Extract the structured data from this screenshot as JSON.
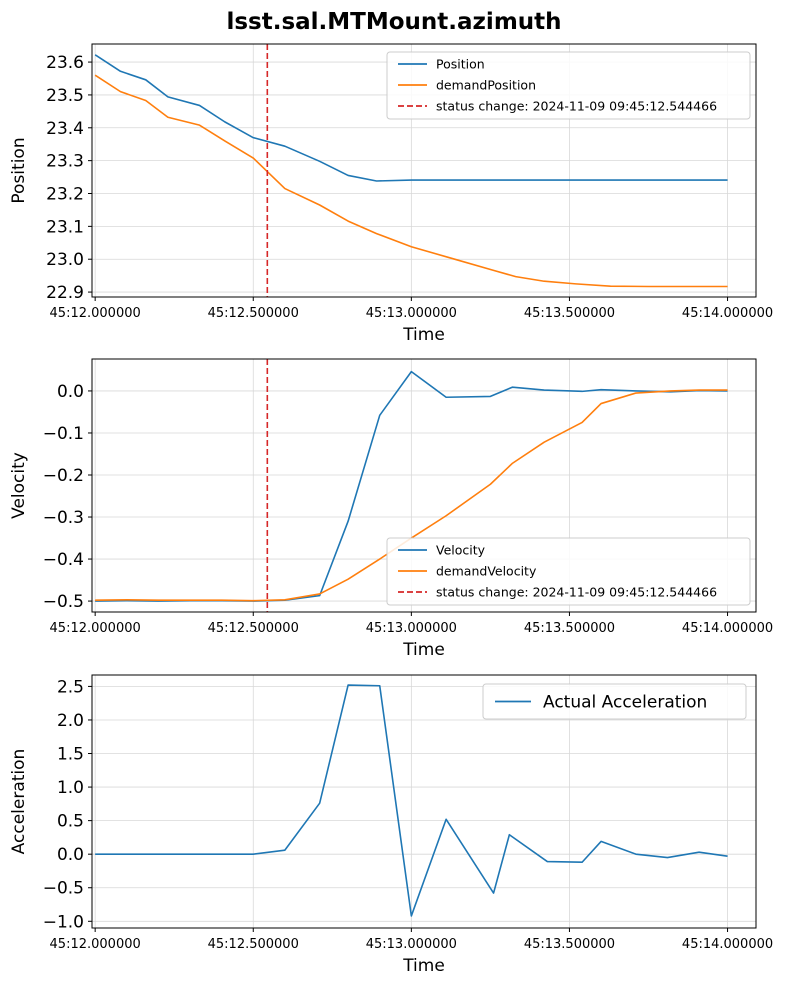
{
  "figure_title": "lsst.sal.MTMount.azimuth",
  "colors": {
    "blue": "#1f77b4",
    "orange": "#ff7f0e",
    "red": "#d62728"
  },
  "chart_data": [
    {
      "type": "line",
      "xlabel": "Time",
      "ylabel": "Position",
      "grid": true,
      "legend": "top-right",
      "xlim": [
        11.99,
        14.09
      ],
      "ylim": [
        22.885,
        23.655
      ],
      "xticks": [
        12.0,
        12.5,
        13.0,
        13.5,
        14.0
      ],
      "xtick_labels": [
        "45:12.000000",
        "45:12.500000",
        "45:13.000000",
        "45:13.500000",
        "45:14.000000"
      ],
      "yticks": [
        22.9,
        23.0,
        23.1,
        23.2,
        23.3,
        23.4,
        23.5,
        23.6
      ],
      "ytick_labels": [
        "22.9",
        "23.0",
        "23.1",
        "23.2",
        "23.3",
        "23.4",
        "23.5",
        "23.6"
      ],
      "series": [
        {
          "name": "Position",
          "color": "#1f77b4",
          "x": [
            12.0,
            12.08,
            12.16,
            12.23,
            12.33,
            12.41,
            12.5,
            12.6,
            12.71,
            12.8,
            12.89,
            13.0,
            13.25,
            13.5,
            13.75,
            14.0
          ],
          "y": [
            23.622,
            23.572,
            23.546,
            23.494,
            23.468,
            23.418,
            23.37,
            23.344,
            23.298,
            23.255,
            23.238,
            23.241,
            23.241,
            23.241,
            23.241,
            23.241
          ]
        },
        {
          "name": "demandPosition",
          "color": "#ff7f0e",
          "x": [
            12.0,
            12.08,
            12.16,
            12.23,
            12.33,
            12.41,
            12.5,
            12.6,
            12.71,
            12.8,
            12.89,
            13.0,
            13.13,
            13.26,
            13.33,
            13.42,
            13.52,
            13.63,
            13.75,
            13.88,
            14.0
          ],
          "y": [
            23.56,
            23.51,
            23.483,
            23.432,
            23.408,
            23.36,
            23.308,
            23.215,
            23.165,
            23.116,
            23.078,
            23.038,
            23.002,
            22.966,
            22.947,
            22.933,
            22.925,
            22.918,
            22.917,
            22.917,
            22.917
          ]
        }
      ],
      "vlines": [
        {
          "name": "status change: 2024-11-09 09:45:12.544466",
          "x": 12.544466,
          "color": "#d62728"
        }
      ]
    },
    {
      "type": "line",
      "xlabel": "Time",
      "ylabel": "Velocity",
      "grid": true,
      "legend": "lower-right",
      "xlim": [
        11.99,
        14.09
      ],
      "ylim": [
        -0.526,
        0.076
      ],
      "xticks": [
        12.0,
        12.5,
        13.0,
        13.5,
        14.0
      ],
      "xtick_labels": [
        "45:12.000000",
        "45:12.500000",
        "45:13.000000",
        "45:13.500000",
        "45:14.000000"
      ],
      "yticks": [
        -0.5,
        -0.4,
        -0.3,
        -0.2,
        -0.1,
        0.0
      ],
      "ytick_labels": [
        "−0.5",
        "−0.4",
        "−0.3",
        "−0.2",
        "−0.1",
        "0.0"
      ],
      "series": [
        {
          "name": "Velocity",
          "color": "#1f77b4",
          "x": [
            12.0,
            12.1,
            12.2,
            12.3,
            12.4,
            12.5,
            12.6,
            12.71,
            12.8,
            12.9,
            13.0,
            13.11,
            13.25,
            13.32,
            13.42,
            13.54,
            13.6,
            13.71,
            13.82,
            13.91,
            14.0
          ],
          "y": [
            -0.5,
            -0.499,
            -0.5,
            -0.499,
            -0.499,
            -0.5,
            -0.498,
            -0.487,
            -0.31,
            -0.058,
            0.046,
            -0.015,
            -0.013,
            0.009,
            0.002,
            -0.001,
            0.003,
            0.0,
            -0.002,
            0.001,
            0.0
          ]
        },
        {
          "name": "demandVelocity",
          "color": "#ff7f0e",
          "x": [
            12.0,
            12.1,
            12.2,
            12.3,
            12.4,
            12.5,
            12.6,
            12.71,
            12.8,
            12.9,
            13.0,
            13.11,
            13.25,
            13.32,
            13.42,
            13.54,
            13.6,
            13.71,
            13.82,
            13.91,
            14.0
          ],
          "y": [
            -0.498,
            -0.497,
            -0.498,
            -0.498,
            -0.498,
            -0.499,
            -0.497,
            -0.483,
            -0.448,
            -0.4,
            -0.35,
            -0.297,
            -0.222,
            -0.172,
            -0.122,
            -0.075,
            -0.03,
            -0.005,
            0.0,
            0.002,
            0.002
          ]
        }
      ],
      "vlines": [
        {
          "name": "status change: 2024-11-09 09:45:12.544466",
          "x": 12.544466,
          "color": "#d62728"
        }
      ]
    },
    {
      "type": "line",
      "xlabel": "Time",
      "ylabel": "Acceleration",
      "grid": true,
      "legend": "top-right",
      "xlim": [
        11.99,
        14.09
      ],
      "ylim": [
        -1.1,
        2.67
      ],
      "xticks": [
        12.0,
        12.5,
        13.0,
        13.5,
        14.0
      ],
      "xtick_labels": [
        "45:12.000000",
        "45:12.500000",
        "45:13.000000",
        "45:13.500000",
        "45:14.000000"
      ],
      "yticks": [
        -1.0,
        -0.5,
        0.0,
        0.5,
        1.0,
        1.5,
        2.0,
        2.5
      ],
      "ytick_labels": [
        "−1.0",
        "−0.5",
        "0.0",
        "0.5",
        "1.0",
        "1.5",
        "2.0",
        "2.5"
      ],
      "series": [
        {
          "name": "Actual Acceleration",
          "color": "#1f77b4",
          "x": [
            12.0,
            12.1,
            12.2,
            12.3,
            12.4,
            12.5,
            12.6,
            12.71,
            12.8,
            12.9,
            13.0,
            13.11,
            13.26,
            13.31,
            13.43,
            13.54,
            13.6,
            13.71,
            13.81,
            13.91,
            14.0
          ],
          "y": [
            0.0,
            0.0,
            0.0,
            0.0,
            0.0,
            0.0,
            0.06,
            0.76,
            2.52,
            2.51,
            -0.92,
            0.52,
            -0.58,
            0.29,
            -0.11,
            -0.12,
            0.19,
            0.0,
            -0.05,
            0.03,
            -0.03
          ]
        }
      ],
      "vlines": []
    }
  ]
}
